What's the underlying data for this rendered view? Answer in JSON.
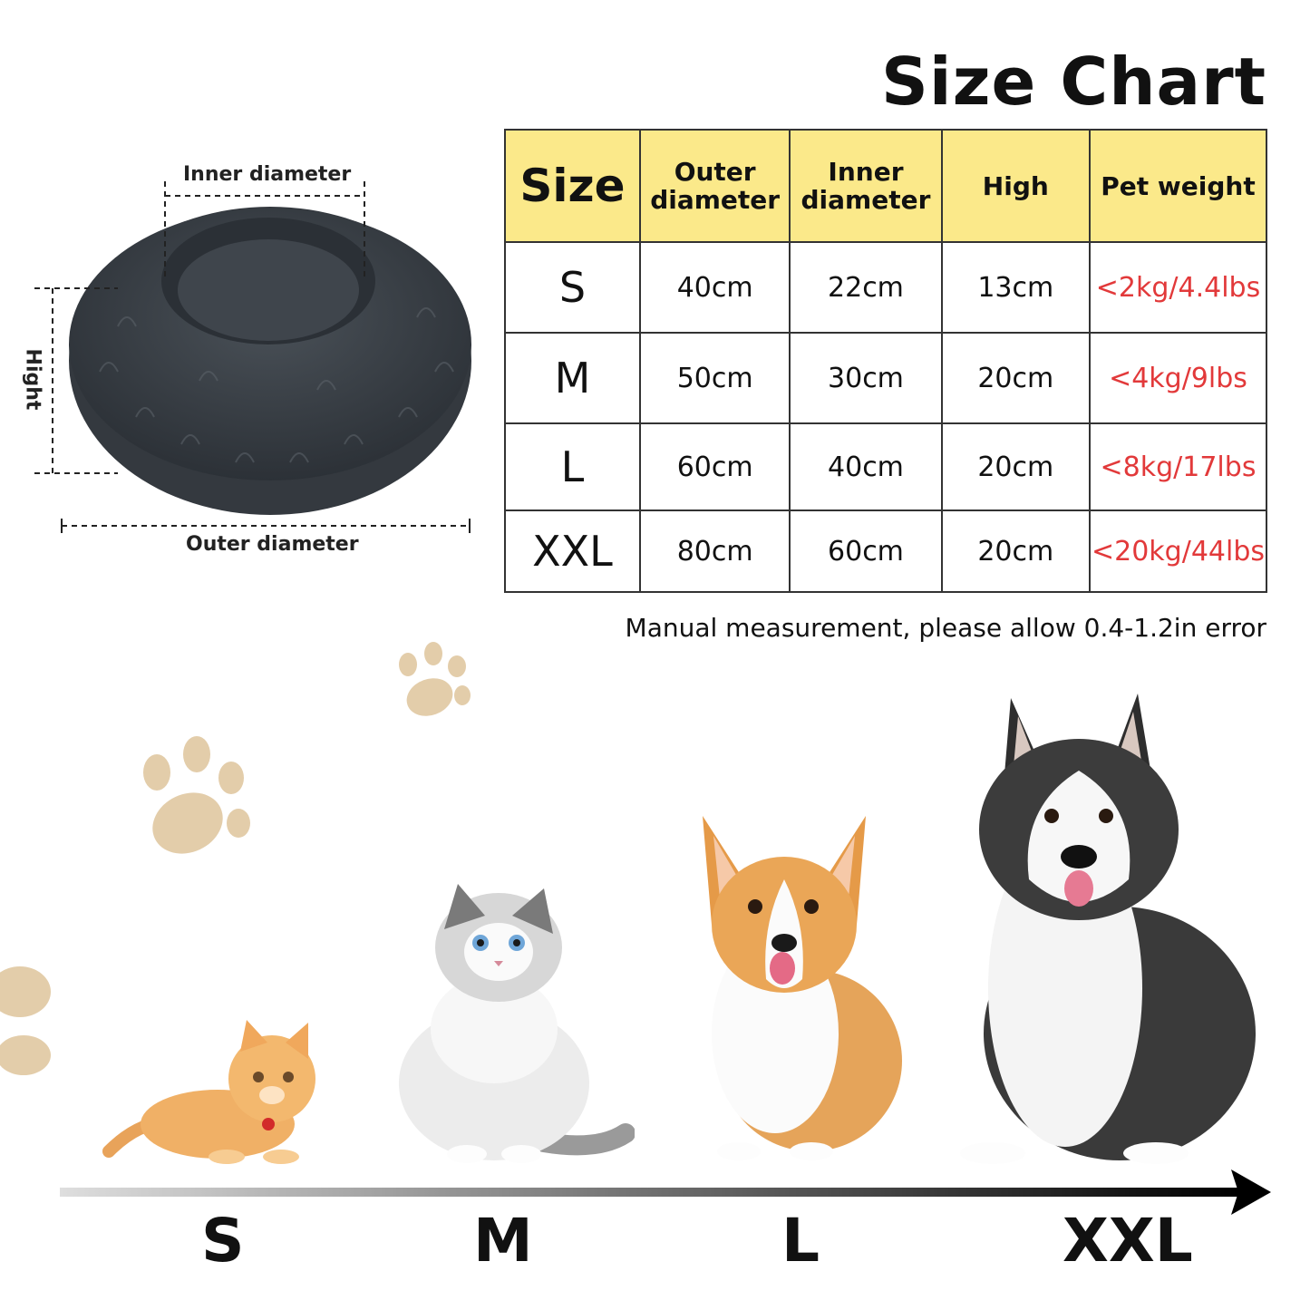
{
  "title": "Size Chart",
  "diagram": {
    "inner_label": "Inner diameter",
    "outer_label": "Outer diameter",
    "height_label": "Hight",
    "bed_color": "#3b4148"
  },
  "table": {
    "headers": [
      "Size",
      "Outer diameter",
      "Inner diameter",
      "High",
      "Pet weight"
    ],
    "rows": [
      {
        "size": "S",
        "outer": "40cm",
        "inner": "22cm",
        "high": "13cm",
        "weight": "<2kg/4.4lbs"
      },
      {
        "size": "M",
        "outer": "50cm",
        "inner": "30cm",
        "high": "20cm",
        "weight": "<4kg/9lbs"
      },
      {
        "size": "L",
        "outer": "60cm",
        "inner": "40cm",
        "high": "20cm",
        "weight": "<8kg/17lbs"
      },
      {
        "size": "XXL",
        "outer": "80cm",
        "inner": "60cm",
        "high": "20cm",
        "weight": "<20kg/44lbs"
      }
    ],
    "header_color": "#fbe98a",
    "weight_color": "#e2393a"
  },
  "note": "Manual measurement, please allow 0.4-1.2in error",
  "scale_labels": [
    "S",
    "M",
    "L",
    "XXL"
  ],
  "paw_color": "#e3cdaa",
  "animals": [
    "kitten-icon",
    "cat-icon",
    "corgi-icon",
    "husky-icon"
  ]
}
